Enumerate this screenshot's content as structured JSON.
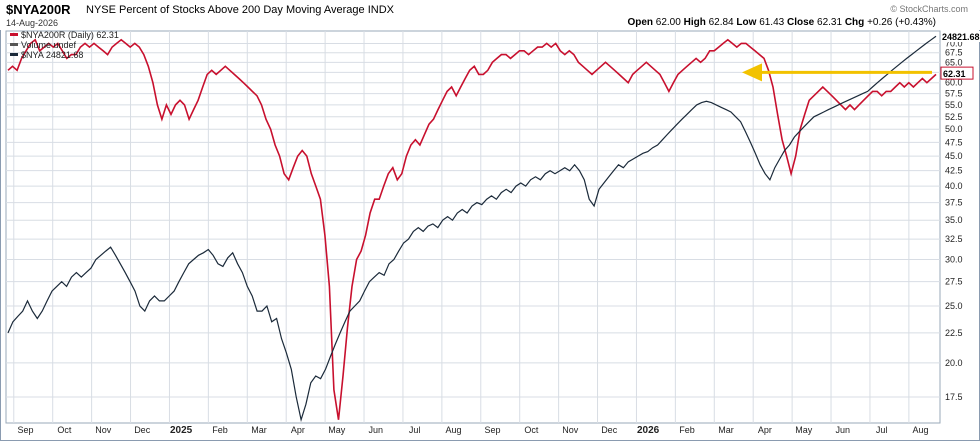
{
  "header": {
    "symbol": "$NYA200R",
    "description": "NYSE Percent of Stocks Above 200 Day Moving Average",
    "exchange": "INDX",
    "date": "14-Aug-2026",
    "brand": "© StockCharts.com",
    "ohlc": {
      "open_label": "Open",
      "open": "62.00",
      "high_label": "High",
      "high": "62.84",
      "low_label": "Low",
      "low": "61.43",
      "close_label": "Close",
      "close": "62.31",
      "chg_label": "Chg",
      "chg": "+0.26 (+0.43%)"
    }
  },
  "colors": {
    "primary_series": "#c8102e",
    "secondary_series": "#1b2a3a",
    "arrow": "#f2c200",
    "grid": "#d8dde4",
    "price_label_bg": "#1b2a3a",
    "close_label_border": "#c8102e"
  },
  "chart_data": {
    "type": "line",
    "title": "$NYA200R NYSE Percent of Stocks Above 200 Day Moving Average",
    "right_axis_ticks": [
      17.5,
      20.0,
      22.5,
      25.0,
      27.5,
      30.0,
      32.5,
      35.0,
      37.5,
      40.0,
      42.5,
      45.0,
      47.5,
      50.0,
      52.5,
      55.0,
      57.5,
      60.0,
      62.5,
      65.0,
      67.5,
      70.0
    ],
    "right_axis_labels": [
      "17.5",
      "20.0",
      "22.5",
      "25.0",
      "27.5",
      "30.0",
      "32.5",
      "35.0",
      "37.5",
      "40.0",
      "42.5",
      "45.0",
      "47.5",
      "50.0",
      "52.5",
      "55.0",
      "57.5",
      "60.0",
      "62.5",
      "65.0",
      "67.5",
      "70.0"
    ],
    "y_scale": "log",
    "ylim": [
      15.8,
      73.5
    ],
    "x_labels": [
      "Sep",
      "Oct",
      "Nov",
      "Dec",
      "2025",
      "Feb",
      "Mar",
      "Apr",
      "May",
      "Jun",
      "Jul",
      "Aug",
      "Sep",
      "Oct",
      "Nov",
      "Dec",
      "2026",
      "Feb",
      "Mar",
      "Apr",
      "May",
      "Jun",
      "Jul",
      "Aug"
    ],
    "legend": [
      {
        "text": "$NYA200R (Daily) 62.31",
        "color": "#c8102e"
      },
      {
        "text": "Volume undef",
        "color": "#555555"
      },
      {
        "text": "$NYA 24821.68",
        "color": "#1b2a3a"
      }
    ],
    "last_value_labels": {
      "secondary": "24821.68",
      "primary": "62.31"
    },
    "series": [
      {
        "name": "$NYA200R (Daily)",
        "color": "#c8102e",
        "values": [
          63,
          64,
          63,
          66,
          68,
          70,
          71,
          68,
          69,
          70,
          69,
          70,
          68,
          66,
          67,
          67,
          69,
          70,
          69,
          70,
          69,
          68,
          67,
          69,
          70,
          71,
          70,
          69,
          70,
          69,
          67,
          64,
          60,
          55,
          52,
          55,
          53,
          55,
          56,
          55,
          52,
          54,
          56,
          59,
          62,
          63,
          62,
          63,
          64,
          63,
          62,
          61,
          60,
          59,
          58,
          57,
          55,
          52,
          50,
          47,
          45,
          42,
          41,
          43,
          45,
          46,
          45,
          42,
          40,
          38,
          33,
          27,
          18,
          16,
          19,
          23,
          27,
          30,
          31,
          33,
          36,
          38,
          38,
          40,
          42,
          43,
          41,
          42,
          45,
          47,
          48,
          47,
          49,
          51,
          52,
          54,
          56,
          58,
          59,
          57,
          59,
          61,
          63,
          64,
          62,
          62,
          63,
          65,
          66,
          67,
          67,
          66,
          67,
          68,
          68,
          67,
          68,
          69,
          69,
          70,
          69,
          70,
          68,
          67,
          68,
          67,
          65,
          64,
          63,
          62,
          63,
          64,
          65,
          64,
          63,
          62,
          61,
          60,
          62,
          63,
          64,
          65,
          64,
          63,
          62,
          60,
          58,
          60,
          62,
          63,
          64,
          65,
          66,
          65,
          66,
          68,
          68,
          69,
          70,
          71,
          70,
          69,
          70,
          70,
          69,
          68,
          67,
          66,
          63,
          59,
          53,
          48,
          45,
          42,
          45,
          50,
          53,
          56,
          57,
          58,
          59,
          58,
          57,
          56,
          55,
          54,
          55,
          54,
          55,
          56,
          57,
          58,
          58,
          57,
          58,
          58,
          59,
          60,
          59,
          60,
          59,
          60,
          61,
          60,
          61,
          62
        ]
      },
      {
        "name": "$NYA",
        "color": "#1b2a3a",
        "values": [
          22.5,
          23.5,
          24.0,
          24.5,
          25.5,
          24.5,
          23.8,
          24.5,
          25.5,
          26.5,
          27.0,
          27.5,
          27.0,
          28.0,
          28.5,
          28.0,
          28.5,
          29.0,
          30.0,
          30.5,
          31.0,
          31.5,
          30.5,
          29.5,
          28.5,
          27.5,
          26.5,
          25.0,
          24.5,
          25.5,
          26.0,
          25.5,
          25.5,
          26.0,
          26.5,
          27.5,
          28.5,
          29.5,
          30.0,
          30.5,
          30.8,
          31.2,
          30.5,
          29.5,
          29.2,
          30.2,
          30.8,
          29.5,
          28.5,
          27.0,
          26.0,
          24.5,
          24.5,
          25.0,
          23.5,
          23.8,
          22.0,
          20.8,
          19.5,
          17.5,
          16.0,
          17.0,
          18.5,
          19.0,
          18.8,
          19.5,
          20.5,
          21.5,
          22.5,
          23.5,
          24.5,
          25.0,
          25.5,
          26.5,
          27.5,
          28.0,
          28.5,
          28.2,
          29.5,
          30.0,
          31.0,
          32.0,
          32.5,
          33.5,
          34.0,
          33.5,
          34.2,
          34.5,
          34.0,
          35.0,
          35.5,
          35.0,
          36.0,
          36.5,
          36.0,
          37.0,
          37.5,
          37.2,
          38.0,
          38.5,
          38.0,
          39.0,
          39.5,
          39.0,
          40.0,
          40.5,
          40.0,
          41.0,
          41.5,
          41.0,
          42.0,
          42.5,
          42.0,
          42.5,
          43.0,
          42.5,
          43.5,
          42.5,
          41.0,
          38.0,
          37.0,
          39.5,
          40.5,
          41.5,
          42.5,
          43.5,
          43.0,
          44.0,
          44.5,
          45.0,
          45.5,
          45.8,
          46.5,
          47.0,
          48.0,
          49.0,
          50.0,
          51.0,
          52.0,
          53.0,
          54.0,
          55.0,
          55.5,
          55.8,
          55.5,
          55.0,
          54.5,
          54.0,
          53.5,
          52.5,
          51.5,
          49.5,
          47.5,
          45.5,
          43.5,
          42.0,
          41.0,
          43.0,
          44.5,
          46.0,
          47.0,
          48.5,
          49.5,
          50.5,
          51.5,
          52.5,
          53.0,
          53.5,
          54.0,
          54.5,
          55.0,
          55.5,
          56.0,
          56.5,
          57.0,
          57.5,
          58.0,
          59.0,
          60.0,
          61.0,
          62.0,
          63.0,
          64.0,
          65.0,
          66.0,
          67.0,
          68.0,
          69.0,
          70.0,
          71.0,
          72.0
        ]
      }
    ],
    "annotation": {
      "type": "arrow",
      "color": "#f2c200",
      "direction": "left",
      "level": 62.5
    }
  }
}
